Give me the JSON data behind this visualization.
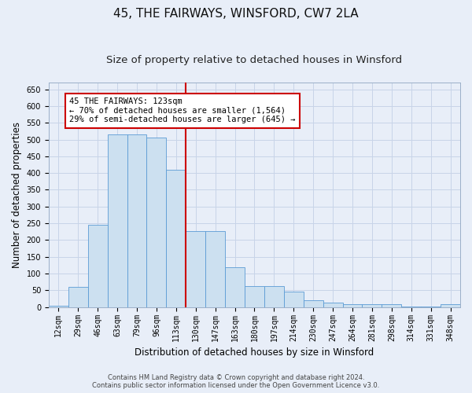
{
  "title": "45, THE FAIRWAYS, WINSFORD, CW7 2LA",
  "subtitle": "Size of property relative to detached houses in Winsford",
  "xlabel": "Distribution of detached houses by size in Winsford",
  "ylabel": "Number of detached properties",
  "bar_labels": [
    "12sqm",
    "29sqm",
    "46sqm",
    "63sqm",
    "79sqm",
    "96sqm",
    "113sqm",
    "130sqm",
    "147sqm",
    "163sqm",
    "180sqm",
    "197sqm",
    "214sqm",
    "230sqm",
    "247sqm",
    "264sqm",
    "281sqm",
    "298sqm",
    "314sqm",
    "331sqm",
    "348sqm"
  ],
  "bar_values": [
    5,
    60,
    246,
    516,
    516,
    505,
    410,
    228,
    228,
    120,
    63,
    63,
    46,
    20,
    13,
    10,
    10,
    8,
    2,
    2,
    8
  ],
  "bar_color": "#cce0f0",
  "bar_edgecolor": "#5b9bd5",
  "annotation_text_line1": "45 THE FAIRWAYS: 123sqm",
  "annotation_text_line2": "← 70% of detached houses are smaller (1,564)",
  "annotation_text_line3": "29% of semi-detached houses are larger (645) →",
  "annotation_box_color": "#ffffff",
  "annotation_box_edgecolor": "#cc0000",
  "vline_color": "#cc0000",
  "grid_color": "#c8d4e8",
  "background_color": "#e8eef8",
  "ylim": [
    0,
    670
  ],
  "yticks": [
    0,
    50,
    100,
    150,
    200,
    250,
    300,
    350,
    400,
    450,
    500,
    550,
    600,
    650
  ],
  "footer_line1": "Contains HM Land Registry data © Crown copyright and database right 2024.",
  "footer_line2": "Contains public sector information licensed under the Open Government Licence v3.0.",
  "title_fontsize": 11,
  "subtitle_fontsize": 9.5,
  "axis_label_fontsize": 8.5,
  "tick_fontsize": 7,
  "annotation_fontsize": 7.5,
  "footer_fontsize": 6
}
